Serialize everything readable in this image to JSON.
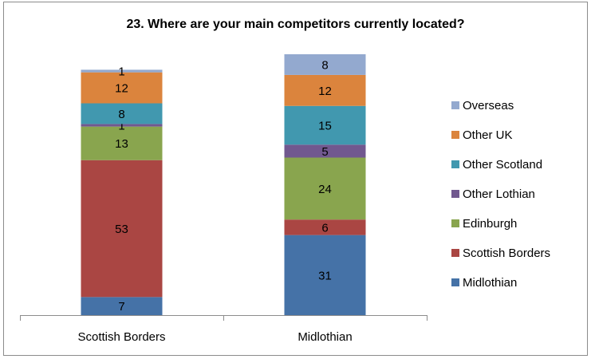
{
  "chart_data": {
    "type": "bar",
    "stacked": true,
    "title": "23.  Where are your main competitors currently located?",
    "categories": [
      "Scottish Borders",
      "Midlothian"
    ],
    "series": [
      {
        "name": "Midlothian",
        "color": "#4572a7",
        "values": [
          7,
          31
        ]
      },
      {
        "name": "Scottish Borders",
        "color": "#aa4643",
        "values": [
          53,
          6
        ]
      },
      {
        "name": "Edinburgh",
        "color": "#89a54e",
        "values": [
          13,
          24
        ]
      },
      {
        "name": "Other Lothian",
        "color": "#71588f",
        "values": [
          1,
          5
        ]
      },
      {
        "name": "Other Scotland",
        "color": "#4198af",
        "values": [
          8,
          15
        ]
      },
      {
        "name": "Other UK",
        "color": "#db843d",
        "values": [
          12,
          12
        ]
      },
      {
        "name": "Overseas",
        "color": "#93a9cf",
        "values": [
          1,
          8
        ]
      }
    ],
    "legend_position": "right",
    "grid": false
  }
}
